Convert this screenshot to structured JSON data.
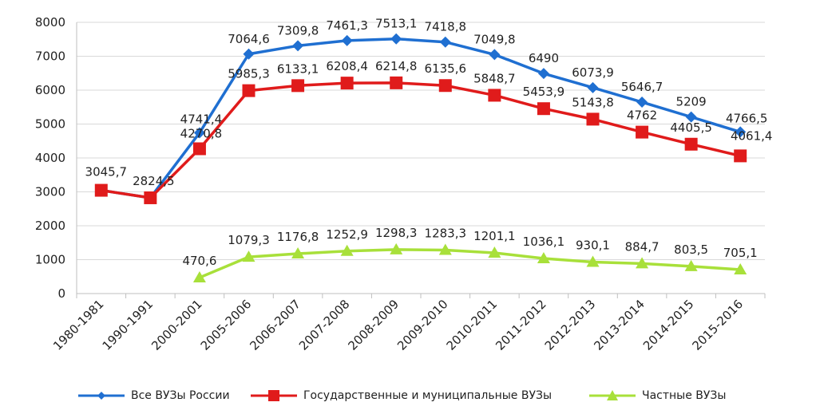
{
  "chart_data": {
    "type": "line",
    "categories": [
      "1980-1981",
      "1990-1991",
      "2000-2001",
      "2005-2006",
      "2006-2007",
      "2007-2008",
      "2008-2009",
      "2009-2010",
      "2010-2011",
      "2011-2012",
      "2012-2013",
      "2013-2014",
      "2014-2015",
      "2015-2016"
    ],
    "ylim": [
      0,
      8000
    ],
    "yticks": [
      0,
      1000,
      2000,
      3000,
      4000,
      5000,
      6000,
      7000,
      8000
    ],
    "grid": true,
    "legend_position": "bottom",
    "series": [
      {
        "name": "Все ВУЗы России",
        "color": "#1f6fd1",
        "marker": "diamond",
        "values": [
          3045.7,
          2824.5,
          4741.4,
          7064.6,
          7309.8,
          7461.3,
          7513.1,
          7418.8,
          7049.8,
          6490,
          6073.9,
          5646.7,
          5209,
          4766.5
        ],
        "labels": [
          "",
          "",
          "4741,4",
          "7064,6",
          "7309,8",
          "7461,3",
          "7513,1",
          "7418,8",
          "7049,8",
          "6490",
          "6073,9",
          "5646,7",
          "5209",
          "4766,5"
        ]
      },
      {
        "name": "Государственные и муниципальные ВУЗы",
        "color": "#e01b1b",
        "marker": "square",
        "values": [
          3045.7,
          2824.5,
          4270.8,
          5985.3,
          6133.1,
          6208.4,
          6214.8,
          6135.6,
          5848.7,
          5453.9,
          5143.8,
          4762,
          4405.5,
          4061.4
        ],
        "labels": [
          "3045,7",
          "2824,5",
          "4270,8",
          "5985,3",
          "6133,1",
          "6208,4",
          "6214,8",
          "6135,6",
          "5848,7",
          "5453,9",
          "5143,8",
          "4762",
          "4405,5",
          "4061,4"
        ]
      },
      {
        "name": "Частные ВУЗы",
        "color": "#a8e03a",
        "marker": "triangle",
        "values": [
          null,
          null,
          470.6,
          1079.3,
          1176.8,
          1252.9,
          1298.3,
          1283.3,
          1201.1,
          1036.1,
          930.1,
          884.7,
          803.5,
          705.1
        ],
        "labels": [
          "",
          "",
          "470,6",
          "1079,3",
          "1176,8",
          "1252,9",
          "1298,3",
          "1283,3",
          "1201,1",
          "1036,1",
          "930,1",
          "884,7",
          "803,5",
          "705,1"
        ]
      }
    ]
  }
}
